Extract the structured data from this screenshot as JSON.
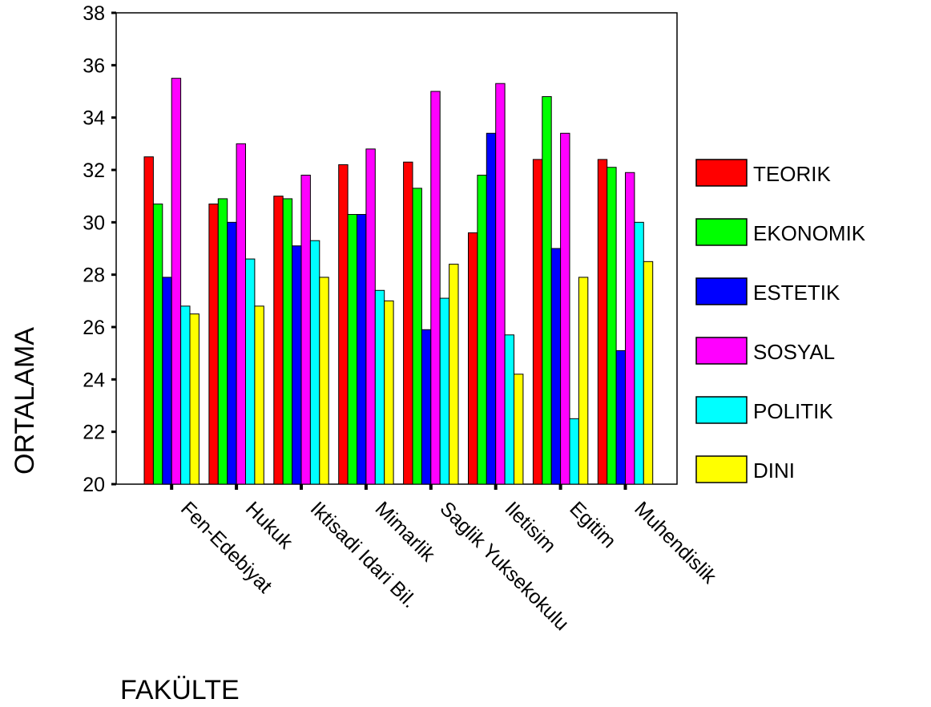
{
  "chart_data": {
    "type": "bar",
    "title": "",
    "xlabel": "FAKÜLTE",
    "ylabel": "ORTALAMA",
    "ylim": [
      20,
      38
    ],
    "yticks": [
      20,
      22,
      24,
      26,
      28,
      30,
      32,
      34,
      36,
      38
    ],
    "grid": false,
    "legend_position": "right",
    "categories": [
      "Fen-Edebiyat",
      "Hukuk",
      "Iktisadi Idari Bil.",
      "Mimarlik",
      "Saglik Yuksekokulu",
      "Iletisim",
      "Egitim",
      "Muhendislik"
    ],
    "series": [
      {
        "name": "TEORIK",
        "color": "#ff0000",
        "values": [
          32.5,
          30.7,
          31.0,
          32.2,
          32.3,
          29.6,
          32.4,
          32.4
        ]
      },
      {
        "name": "EKONOMIK",
        "color": "#00ff00",
        "values": [
          30.7,
          30.9,
          30.9,
          30.3,
          31.3,
          31.8,
          34.8,
          32.1
        ]
      },
      {
        "name": "ESTETIK",
        "color": "#0000ff",
        "values": [
          27.9,
          30.0,
          29.1,
          30.3,
          25.9,
          33.4,
          29.0,
          25.1
        ]
      },
      {
        "name": "SOSYAL",
        "color": "#ff00ff",
        "values": [
          35.5,
          33.0,
          31.8,
          32.8,
          35.0,
          35.3,
          33.4,
          31.9
        ]
      },
      {
        "name": "POLITIK",
        "color": "#00ffff",
        "values": [
          26.8,
          28.6,
          29.3,
          27.4,
          27.1,
          25.7,
          22.5,
          30.0
        ]
      },
      {
        "name": "DINI",
        "color": "#ffff00",
        "values": [
          26.5,
          26.8,
          27.9,
          27.0,
          28.4,
          24.2,
          27.9,
          28.5
        ]
      }
    ]
  }
}
